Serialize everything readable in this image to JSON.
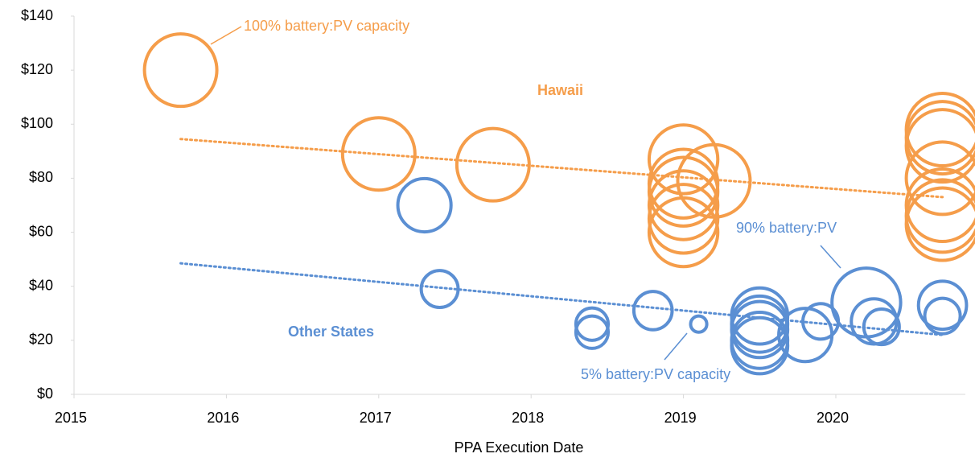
{
  "chart_data": {
    "type": "bubble",
    "x_label": "PPA Execution Date",
    "xlim": [
      2015,
      2020.85
    ],
    "xticks": [
      2015,
      2016,
      2017,
      2018,
      2019,
      2020
    ],
    "ylim": [
      0,
      140
    ],
    "yticks": [
      {
        "value": 0,
        "label": "$0"
      },
      {
        "value": 20,
        "label": "$20"
      },
      {
        "value": 40,
        "label": "$40"
      },
      {
        "value": 60,
        "label": "$60"
      },
      {
        "value": 80,
        "label": "$80"
      },
      {
        "value": 100,
        "label": "$100"
      },
      {
        "value": 120,
        "label": "$120"
      },
      {
        "value": 140,
        "label": "$140"
      }
    ],
    "series": [
      {
        "name": "Hawaii",
        "color": "#f59d4a",
        "x": [
          2015.7,
          2017.0,
          2017.75,
          2019.0,
          2019.0,
          2019.0,
          2019.0,
          2019.0,
          2019.0,
          2019.2,
          2020.7,
          2020.7,
          2020.7,
          2020.7,
          2020.7,
          2020.7,
          2020.7
        ],
        "values": [
          120,
          89,
          85,
          87,
          78,
          75,
          70,
          65,
          60,
          79,
          98,
          95,
          92,
          80,
          70,
          66,
          63
        ],
        "sizes": [
          100,
          100,
          100,
          90,
          90,
          90,
          90,
          90,
          90,
          100,
          100,
          100,
          100,
          100,
          100,
          100,
          100
        ],
        "trend": {
          "x": [
            2015.7,
            2020.7
          ],
          "values": [
            94.5,
            73
          ]
        }
      },
      {
        "name": "Other States",
        "color": "#5b8fd3",
        "x": [
          2017.3,
          2017.4,
          2018.4,
          2018.4,
          2018.8,
          2019.1,
          2019.5,
          2019.5,
          2019.5,
          2019.5,
          2019.5,
          2019.8,
          2019.9,
          2020.2,
          2020.25,
          2020.3,
          2020.7,
          2020.7
        ],
        "values": [
          70,
          39,
          26,
          23,
          31,
          26,
          29,
          26,
          24,
          20,
          18,
          22,
          27,
          34,
          27,
          25,
          33,
          29
        ],
        "sizes": [
          54,
          26,
          20,
          20,
          28,
          5,
          60,
          60,
          60,
          60,
          60,
          54,
          24,
          90,
          39,
          24,
          44,
          24
        ],
        "trend": {
          "x": [
            2015.7,
            2020.7
          ],
          "values": [
            48.5,
            22
          ]
        }
      }
    ],
    "annotations": [
      "100% battery:PV capacity",
      "90% battery:PV",
      "5% battery:PV capacity"
    ]
  }
}
